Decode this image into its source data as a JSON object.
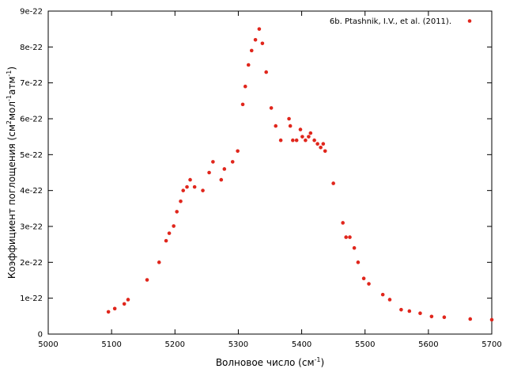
{
  "chart_data": {
    "type": "scatter",
    "xlabel": "Волновое число (см",
    "xlabel_sup": "-1",
    "xlabel_end": ")",
    "ylabel_parts": [
      "Коэффициент поглощения (см",
      "2",
      "мол",
      "-1",
      "атм",
      "-1",
      ")"
    ],
    "xlim": [
      5000,
      5700
    ],
    "ylim": [
      0,
      9e-22
    ],
    "x_ticks": [
      5000,
      5100,
      5200,
      5300,
      5400,
      5500,
      5600,
      5700
    ],
    "x_tick_labels": [
      "5000",
      "5100",
      "5200",
      "5300",
      "5400",
      "5500",
      "5600",
      "5700"
    ],
    "y_ticks": [
      0,
      1e-22,
      2e-22,
      3e-22,
      4e-22,
      5e-22,
      6e-22,
      7e-22,
      8e-22,
      9e-22
    ],
    "y_tick_labels": [
      "0",
      "1e-22",
      "2e-22",
      "3e-22",
      "4e-22",
      "5e-22",
      "6e-22",
      "7e-22",
      "8e-22",
      "9e-22"
    ],
    "grid": false,
    "legend_position": "top-right",
    "series": [
      {
        "name": "6b. Ptashnik, I.V., et al. (2011).",
        "color": "#e0261c",
        "x": [
          5095,
          5105,
          5120,
          5126,
          5156,
          5175,
          5186,
          5191,
          5198,
          5203,
          5209,
          5213,
          5219,
          5224,
          5231,
          5244,
          5254,
          5260,
          5273,
          5278,
          5291,
          5299,
          5307,
          5311,
          5316,
          5321,
          5327,
          5333,
          5338,
          5344,
          5352,
          5359,
          5367,
          5380,
          5382,
          5386,
          5392,
          5398,
          5401,
          5406,
          5411,
          5414,
          5420,
          5425,
          5430,
          5434,
          5437,
          5450,
          5465,
          5470,
          5476,
          5483,
          5489,
          5498,
          5506,
          5528,
          5539,
          5557,
          5570,
          5587,
          5605,
          5625,
          5666,
          5700
        ],
        "y": [
          6.2e-23,
          7.1e-23,
          8.4e-23,
          9.6e-23,
          1.51e-22,
          2e-22,
          2.6e-22,
          2.81e-22,
          3.01e-22,
          3.41e-22,
          3.7e-22,
          4e-22,
          4.1e-22,
          4.3e-22,
          4.1e-22,
          4e-22,
          4.5e-22,
          4.8e-22,
          4.3e-22,
          4.6e-22,
          4.8e-22,
          5.1e-22,
          6.4e-22,
          6.9e-22,
          7.5e-22,
          7.9e-22,
          8.2e-22,
          8.5e-22,
          8.1e-22,
          7.3e-22,
          6.3e-22,
          5.8e-22,
          5.4e-22,
          6e-22,
          5.8e-22,
          5.4e-22,
          5.4e-22,
          5.7e-22,
          5.5e-22,
          5.4e-22,
          5.5e-22,
          5.6e-22,
          5.4e-22,
          5.3e-22,
          5.2e-22,
          5.3e-22,
          5.1e-22,
          4.2e-22,
          3.1e-22,
          2.7e-22,
          2.7e-22,
          2.4e-22,
          2e-22,
          1.55e-22,
          1.4e-22,
          1.1e-22,
          9.6e-23,
          6.8e-23,
          6.4e-23,
          5.8e-23,
          4.9e-23,
          4.7e-23,
          4.2e-23,
          4e-23
        ]
      }
    ]
  }
}
